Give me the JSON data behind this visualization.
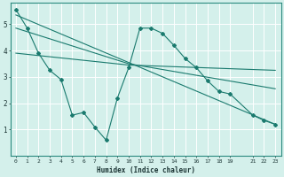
{
  "xlabel": "Humidex (Indice chaleur)",
  "bg_color": "#d4f0eb",
  "grid_color": "#ffffff",
  "line_color": "#1a7a6e",
  "xlim": [
    -0.5,
    23.5
  ],
  "ylim": [
    0,
    5.8
  ],
  "xticks": [
    0,
    1,
    2,
    3,
    4,
    5,
    6,
    7,
    8,
    9,
    10,
    11,
    12,
    13,
    14,
    15,
    16,
    17,
    18,
    19,
    21,
    22,
    23
  ],
  "yticks": [
    1,
    2,
    3,
    4,
    5
  ],
  "line1_x": [
    0,
    1,
    2,
    3,
    4,
    5,
    6,
    7,
    8,
    9,
    10,
    11,
    12,
    13,
    14,
    15,
    16,
    17,
    18,
    19,
    21,
    22,
    23
  ],
  "line1_y": [
    5.55,
    4.85,
    3.9,
    3.25,
    2.9,
    1.55,
    1.65,
    1.1,
    0.6,
    2.2,
    3.35,
    4.85,
    4.85,
    4.65,
    4.2,
    3.7,
    3.35,
    2.85,
    2.45,
    2.35,
    1.55,
    1.35,
    1.2
  ],
  "line2_x": [
    0,
    23
  ],
  "line2_y": [
    5.35,
    1.2
  ],
  "line3_x": [
    0,
    10,
    23
  ],
  "line3_y": [
    4.85,
    3.5,
    2.55
  ],
  "line4_x": [
    0,
    10,
    23
  ],
  "line4_y": [
    3.9,
    3.45,
    3.25
  ]
}
